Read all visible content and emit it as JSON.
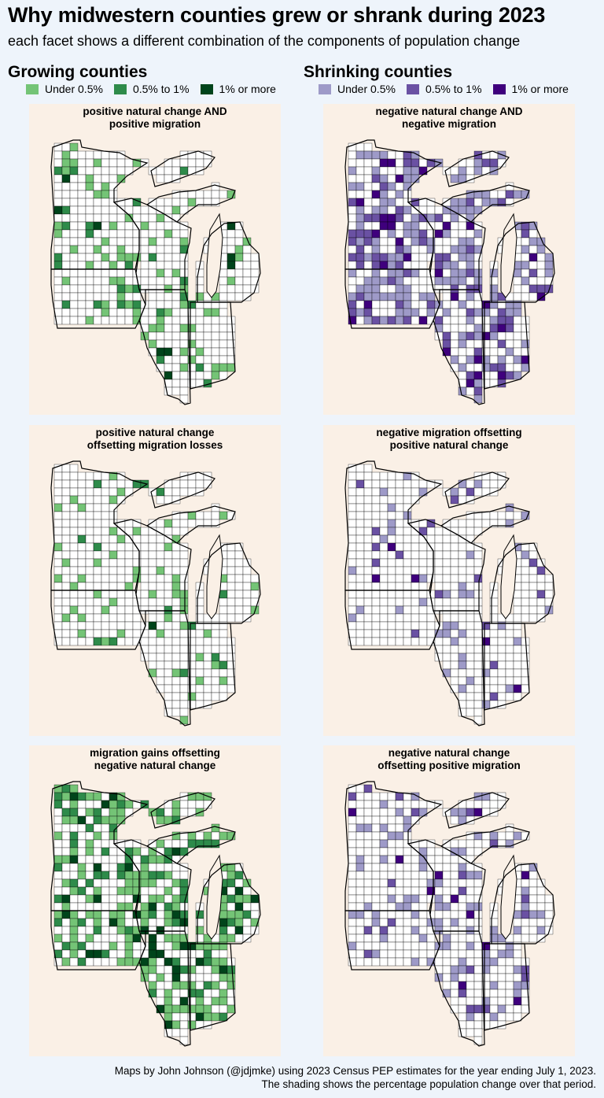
{
  "title": "Why midwestern counties grew or shrank during 2023",
  "subtitle": "each facet shows a different combination of the components of population change",
  "groups": {
    "growing": {
      "heading": "Growing counties",
      "legend": [
        {
          "label": "Under 0.5%",
          "color": "#74c476"
        },
        {
          "label": "0.5% to 1%",
          "color": "#2e8b4a"
        },
        {
          "label": "1% or more",
          "color": "#00441b"
        }
      ]
    },
    "shrinking": {
      "heading": "Shrinking counties",
      "legend": [
        {
          "label": "Under 0.5%",
          "color": "#9e9ac8"
        },
        {
          "label": "0.5% to 1%",
          "color": "#6a51a3"
        },
        {
          "label": "1% or more",
          "color": "#3f007d"
        }
      ]
    }
  },
  "panels": [
    {
      "line1": "positive natural change AND",
      "line2": "positive migration",
      "palette": "growing",
      "density": "medium"
    },
    {
      "line1": "negative natural change AND",
      "line2": "negative migration",
      "palette": "shrinking",
      "density": "high"
    },
    {
      "line1": "positive natural change",
      "line2": "offsetting migration losses",
      "palette": "growing",
      "density": "low"
    },
    {
      "line1": "negative migration offsetting",
      "line2": "positive natural change",
      "palette": "shrinking",
      "density": "low"
    },
    {
      "line1": "migration gains offsetting",
      "line2": "negative natural change",
      "palette": "growing",
      "density": "high"
    },
    {
      "line1": "negative natural change",
      "line2": "offsetting positive migration",
      "palette": "shrinking",
      "density": "medium"
    }
  ],
  "caption": {
    "line1": "Maps by John Johnson (@jdjmke) using 2023 Census PEP estimates for the year ending July 1, 2023.",
    "line2": "The shading shows the percentage population change over that period."
  },
  "colors": {
    "background": "#eef4fb",
    "panel": "#faf0e6",
    "county_fill": "#ffffff",
    "county_border": "#000000"
  }
}
